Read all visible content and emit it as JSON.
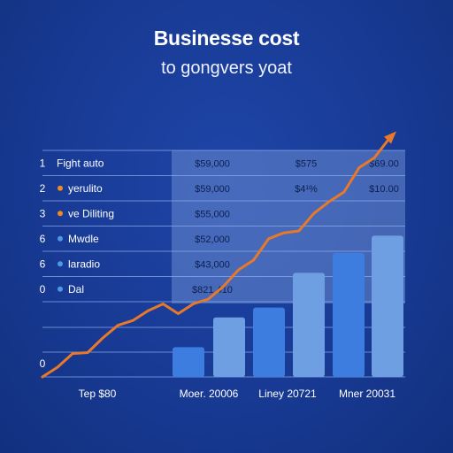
{
  "title": "Businesse cost",
  "subtitle": "to gongvers yoat",
  "colors": {
    "background": "#183a94",
    "bar": "#3d7de0",
    "bar_light": "#6f9fe3",
    "line": "#e8782a",
    "table_panel": "#6a8bd0",
    "bullet_orange": "#f08a24",
    "bullet_blue": "#4a9ae8"
  },
  "chart_data": {
    "type": "bar",
    "title": "Businesse cost",
    "subtitle": "to gongvers yoat",
    "rows": [
      {
        "num": "1",
        "label": "Fight auto",
        "bullet": "none",
        "cells": [
          "$59,000",
          "$575",
          "$69.00"
        ]
      },
      {
        "num": "2",
        "label": "yerulito",
        "bullet": "orange",
        "cells": [
          "$59,000",
          "$4¹%",
          "$10.00"
        ]
      },
      {
        "num": "3",
        "label": "ve Diliting",
        "bullet": "orange",
        "cells": [
          "$55,000",
          "",
          ""
        ]
      },
      {
        "num": "6",
        "label": "Mwdle",
        "bullet": "blue",
        "cells": [
          "$52,000",
          "",
          ""
        ]
      },
      {
        "num": "6",
        "label": "laradio",
        "bullet": "blue",
        "cells": [
          "$43,000",
          "",
          ""
        ]
      },
      {
        "num": "0",
        "label": "Dal",
        "bullet": "blue",
        "cells": [
          "$821,410",
          "",
          ""
        ]
      }
    ],
    "baseline_label": "0",
    "categories": [
      "Tep $80",
      "Moer. 20006",
      "Liney 20721",
      "Mner 20031"
    ],
    "bars": [
      {
        "values": [
          12,
          24
        ]
      },
      {
        "values": [
          28,
          42
        ]
      },
      {
        "values": [
          50,
          57
        ]
      }
    ],
    "line": [
      0,
      10,
      24,
      25,
      40,
      53,
      58,
      68,
      75,
      65,
      75,
      80,
      93,
      110,
      120,
      142,
      148,
      150,
      168,
      180,
      190,
      215,
      225,
      245
    ]
  }
}
